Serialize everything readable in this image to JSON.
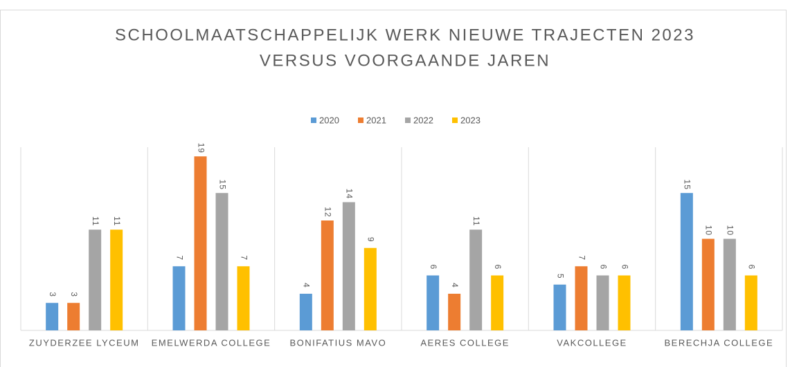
{
  "chart_data": {
    "type": "bar",
    "title": [
      "SCHOOLMAATSCHAPPELIJK WERK NIEUWE TRAJECTEN 2023",
      "VERSUS VOORGAANDE JAREN"
    ],
    "categories": [
      "ZUYDERZEE LYCEUM",
      "EMELWERDA COLLEGE",
      "BONIFATIUS MAVO",
      "AERES COLLEGE",
      "VAKCOLLEGE",
      "BERECHJA COLLEGE"
    ],
    "series": [
      {
        "name": "2020",
        "color": "#5b9bd5",
        "values": [
          3,
          7,
          4,
          6,
          5,
          15
        ]
      },
      {
        "name": "2021",
        "color": "#ed7d31",
        "values": [
          3,
          19,
          12,
          4,
          7,
          10
        ]
      },
      {
        "name": "2022",
        "color": "#a5a5a5",
        "values": [
          11,
          15,
          14,
          11,
          6,
          10
        ]
      },
      {
        "name": "2023",
        "color": "#ffc000",
        "values": [
          11,
          7,
          9,
          6,
          6,
          6
        ]
      }
    ],
    "ylim": [
      0,
      20
    ],
    "legend": "top"
  }
}
